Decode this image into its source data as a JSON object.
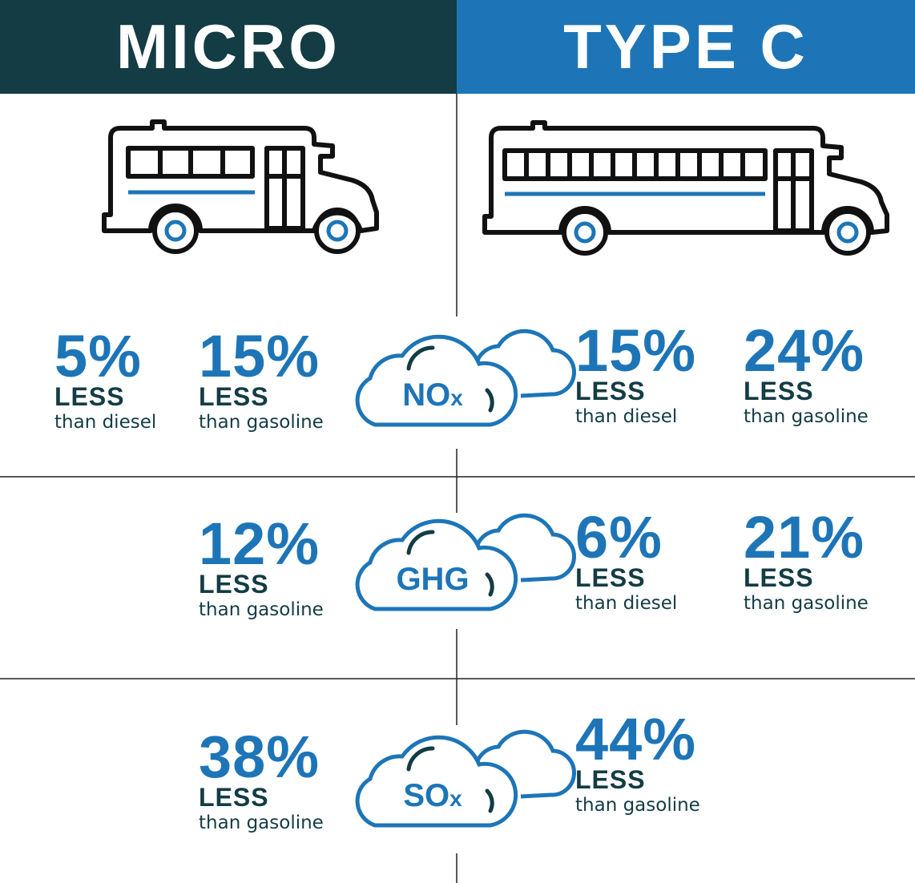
{
  "columns": [
    {
      "title": "MICRO"
    },
    {
      "title": "TYPE C"
    }
  ],
  "rows": [
    {
      "pollutant": {
        "label": "NO",
        "subscript": "x"
      },
      "micro": [
        {
          "value": "5%",
          "less": "LESS",
          "comparison": "than diesel"
        },
        {
          "value": "15%",
          "less": "LESS",
          "comparison": "than gasoline"
        }
      ],
      "type_c": [
        {
          "value": "15%",
          "less": "LESS",
          "comparison": "than diesel"
        },
        {
          "value": "24%",
          "less": "LESS",
          "comparison": "than gasoline"
        }
      ]
    },
    {
      "pollutant": {
        "label": "GHG"
      },
      "micro": [
        {
          "value": "12%",
          "less": "LESS",
          "comparison": "than gasoline"
        }
      ],
      "type_c": [
        {
          "value": "6%",
          "less": "LESS",
          "comparison": "than diesel"
        },
        {
          "value": "21%",
          "less": "LESS",
          "comparison": "than gasoline"
        }
      ]
    },
    {
      "pollutant": {
        "label": "SO",
        "subscript": "x"
      },
      "micro": [
        {
          "value": "38%",
          "less": "LESS",
          "comparison": "than gasoline"
        }
      ],
      "type_c": [
        {
          "value": "44%",
          "less": "LESS",
          "comparison": "than gasoline"
        }
      ]
    }
  ]
}
